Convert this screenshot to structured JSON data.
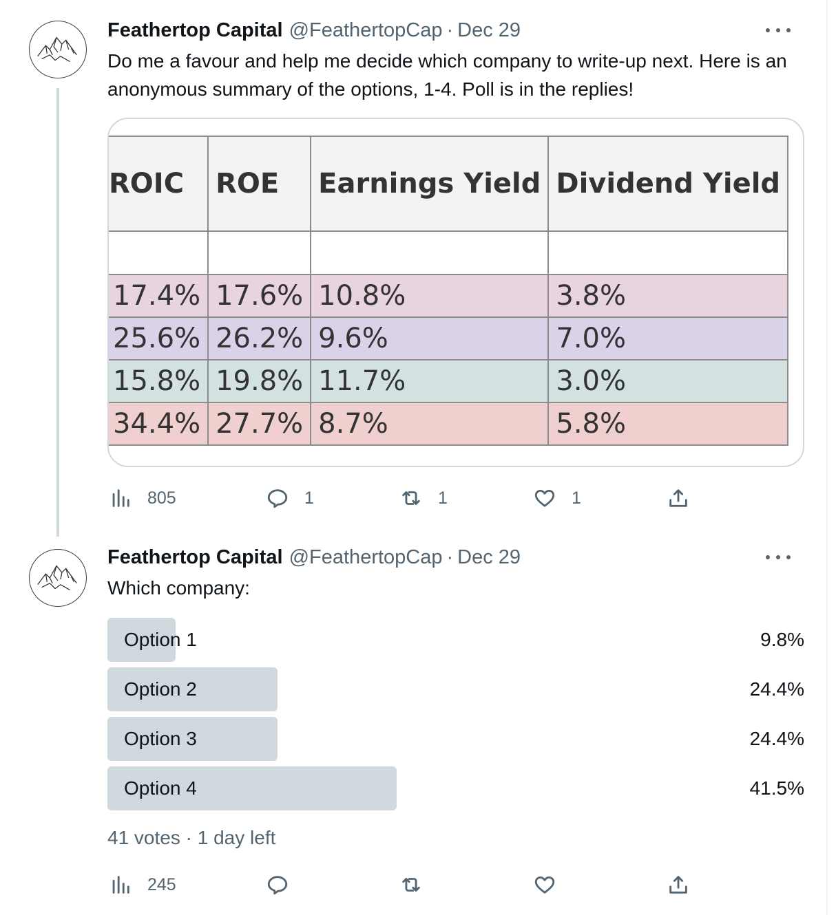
{
  "tweet1": {
    "name": "Feathertop Capital",
    "handle": "@FeathertopCap",
    "separator": "·",
    "date": "Dec 29",
    "text": "Do me a favour and help me decide which company to write-up next. Here is an anonymous summary of the options, 1-4. Poll is in the replies!",
    "table": {
      "headers": [
        "ROIC",
        "ROE",
        "Earnings Yield",
        "Dividend Yield"
      ],
      "rows": [
        [
          "17.4%",
          "17.6%",
          "10.8%",
          "3.8%"
        ],
        [
          "25.6%",
          "26.2%",
          "9.6%",
          "7.0%"
        ],
        [
          "15.8%",
          "19.8%",
          "11.7%",
          "3.0%"
        ],
        [
          "34.4%",
          "27.7%",
          "8.7%",
          "5.8%"
        ]
      ],
      "row_colors": [
        "#e8d4df",
        "#d9d2e8",
        "#d3e1e0",
        "#f0cfcf"
      ]
    },
    "actions": {
      "views": "805",
      "replies": "1",
      "retweets": "1",
      "likes": "1"
    },
    "icons": [
      "views-icon",
      "reply-icon",
      "retweet-icon",
      "like-icon",
      "share-icon",
      "more-icon"
    ]
  },
  "tweet2": {
    "name": "Feathertop Capital",
    "handle": "@FeathertopCap",
    "separator": "·",
    "date": "Dec 29",
    "text": "Which company:",
    "poll": {
      "options": [
        {
          "label": "Option 1",
          "percent": "9.8%",
          "value": 9.8
        },
        {
          "label": "Option 2",
          "percent": "24.4%",
          "value": 24.4
        },
        {
          "label": "Option 3",
          "percent": "24.4%",
          "value": 24.4
        },
        {
          "label": "Option 4",
          "percent": "41.5%",
          "value": 41.5
        }
      ],
      "votes": "41 votes",
      "separator": "·",
      "time_left": "1 day left"
    },
    "actions": {
      "views": "245"
    }
  },
  "colors": {
    "text_primary": "#0f1419",
    "text_secondary": "#536471",
    "poll_fill": "#cfd9de",
    "border": "#cfd9de"
  }
}
